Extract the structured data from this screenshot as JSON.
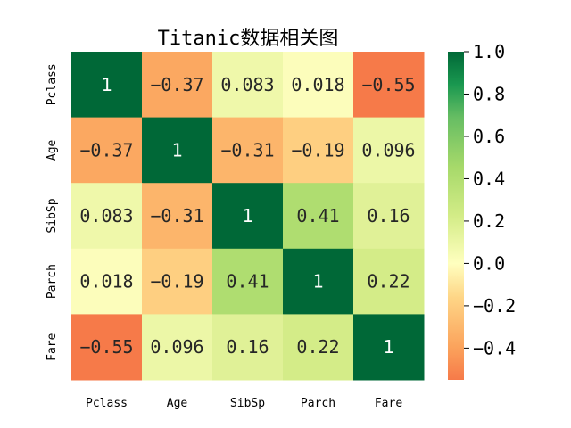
{
  "chart_data": {
    "type": "heatmap",
    "title": "Titanic数据相关图",
    "rows": [
      "Pclass",
      "Age",
      "SibSp",
      "Parch",
      "Fare"
    ],
    "cols": [
      "Pclass",
      "Age",
      "SibSp",
      "Parch",
      "Fare"
    ],
    "values": [
      [
        1,
        -0.37,
        0.083,
        0.018,
        -0.55
      ],
      [
        -0.37,
        1,
        -0.31,
        -0.19,
        0.096
      ],
      [
        0.083,
        -0.31,
        1,
        0.41,
        0.16
      ],
      [
        0.018,
        -0.19,
        0.41,
        1,
        0.22
      ],
      [
        -0.55,
        0.096,
        0.16,
        0.22,
        1
      ]
    ],
    "labels": [
      [
        "1",
        "−0.37",
        "0.083",
        "0.018",
        "−0.55"
      ],
      [
        "−0.37",
        "1",
        "−0.31",
        "−0.19",
        "0.096"
      ],
      [
        "0.083",
        "−0.31",
        "1",
        "0.41",
        "0.16"
      ],
      [
        "0.018",
        "−0.19",
        "0.41",
        "1",
        "0.22"
      ],
      [
        "−0.55",
        "0.096",
        "0.16",
        "0.22",
        "1"
      ]
    ],
    "colormap": "RdYlGn",
    "vmin": -0.55,
    "vmax": 1.0,
    "colorbar": {
      "ticks": [
        1.0,
        0.8,
        0.6,
        0.4,
        0.2,
        0.0,
        -0.2,
        -0.4
      ],
      "tick_labels": [
        "1.0",
        "0.8",
        "0.6",
        "0.4",
        "0.2",
        "0.0",
        "−0.2",
        "−0.4"
      ]
    }
  }
}
